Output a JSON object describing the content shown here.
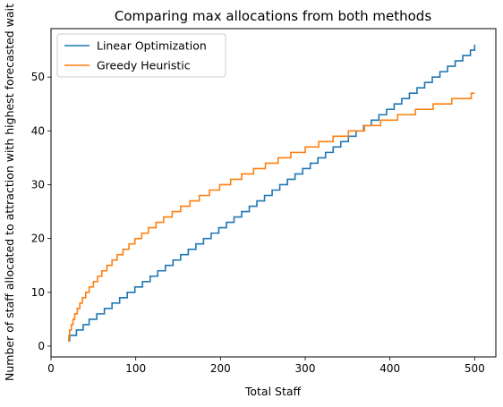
{
  "chart_data": {
    "type": "line",
    "title": "Comparing max allocations from both methods",
    "xlabel": "Total Staff",
    "ylabel": "Number of staff allocated to attraction with highest forecasted wait",
    "xlim": [
      0,
      525
    ],
    "ylim": [
      -2,
      59
    ],
    "xticks": [
      0,
      100,
      200,
      300,
      400,
      500
    ],
    "yticks": [
      0,
      10,
      20,
      30,
      40,
      50
    ],
    "xtick_labels": [
      "0",
      "100",
      "200",
      "300",
      "400",
      "500"
    ],
    "ytick_labels": [
      "0",
      "10",
      "20",
      "30",
      "40",
      "50"
    ],
    "grid": false,
    "legend_position": "top-left",
    "step_style": "post",
    "series": [
      {
        "name": "Linear Optimization",
        "color": "#1f77b4",
        "x": [
          20,
          22,
          25,
          30,
          38,
          45,
          54,
          63,
          72,
          81,
          90,
          99,
          108,
          117,
          126,
          135,
          144,
          153,
          162,
          171,
          180,
          189,
          198,
          207,
          216,
          225,
          234,
          243,
          252,
          261,
          270,
          279,
          288,
          297,
          306,
          315,
          324,
          333,
          342,
          351,
          360,
          369,
          378,
          387,
          396,
          405,
          414,
          423,
          432,
          441,
          450,
          459,
          468,
          477,
          486,
          495,
          500
        ],
        "values": [
          1,
          2,
          2,
          3,
          4,
          5,
          6,
          7,
          8,
          9,
          10,
          11,
          12,
          13,
          14,
          15,
          16,
          17,
          18,
          19,
          20,
          21,
          22,
          23,
          24,
          25,
          26,
          27,
          28,
          29,
          30,
          31,
          32,
          33,
          34,
          35,
          36,
          37,
          38,
          39,
          40,
          41,
          42,
          43,
          44,
          45,
          46,
          47,
          48,
          49,
          50,
          51,
          52,
          53,
          54,
          55,
          56
        ]
      },
      {
        "name": "Greedy Heuristic",
        "color": "#ff7f0e",
        "x": [
          20,
          21,
          22,
          24,
          26,
          28,
          31,
          34,
          37,
          41,
          45,
          50,
          55,
          60,
          66,
          72,
          78,
          85,
          92,
          99,
          107,
          115,
          124,
          133,
          143,
          153,
          164,
          175,
          187,
          199,
          212,
          225,
          239,
          253,
          268,
          283,
          300,
          316,
          333,
          351,
          370,
          389,
          409,
          430,
          451,
          473,
          496,
          500
        ],
        "values": [
          1,
          2,
          3,
          4,
          5,
          6,
          7,
          8,
          9,
          10,
          11,
          12,
          13,
          14,
          15,
          16,
          17,
          18,
          19,
          20,
          21,
          22,
          23,
          24,
          25,
          26,
          27,
          28,
          29,
          30,
          31,
          32,
          33,
          34,
          35,
          36,
          37,
          38,
          39,
          40,
          41,
          42,
          43,
          44,
          45,
          46,
          47,
          47
        ]
      }
    ]
  }
}
